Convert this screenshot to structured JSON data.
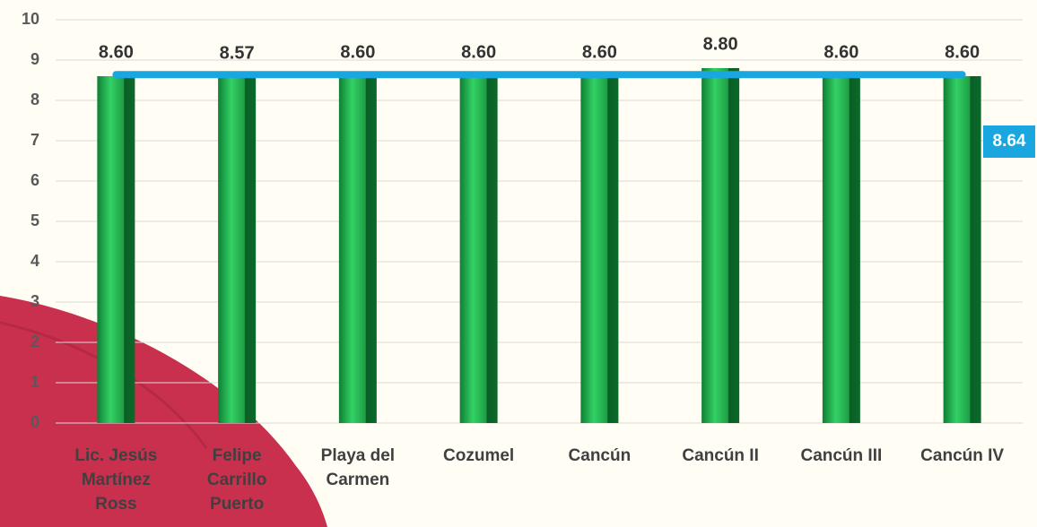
{
  "chart_data": {
    "type": "bar",
    "categories": [
      "Lic. Jesús Martínez Ross",
      "Felipe Carrillo Puerto",
      "Playa del Carmen",
      "Cozumel",
      "Cancún",
      "Cancún II",
      "Cancún III",
      "Cancún IV"
    ],
    "values": [
      8.6,
      8.57,
      8.6,
      8.6,
      8.6,
      8.8,
      8.6,
      8.6
    ],
    "value_labels": [
      "8.60",
      "8.57",
      "8.60",
      "8.60",
      "8.60",
      "8.80",
      "8.60",
      "8.60"
    ],
    "color": "#1e9e45",
    "average": {
      "value": 8.64,
      "color": "#1aa7e0"
    },
    "ylim": [
      0,
      10
    ],
    "yticks": [
      0,
      1,
      2,
      3,
      4,
      5,
      6,
      7,
      8,
      9,
      10
    ],
    "grid": true
  }
}
